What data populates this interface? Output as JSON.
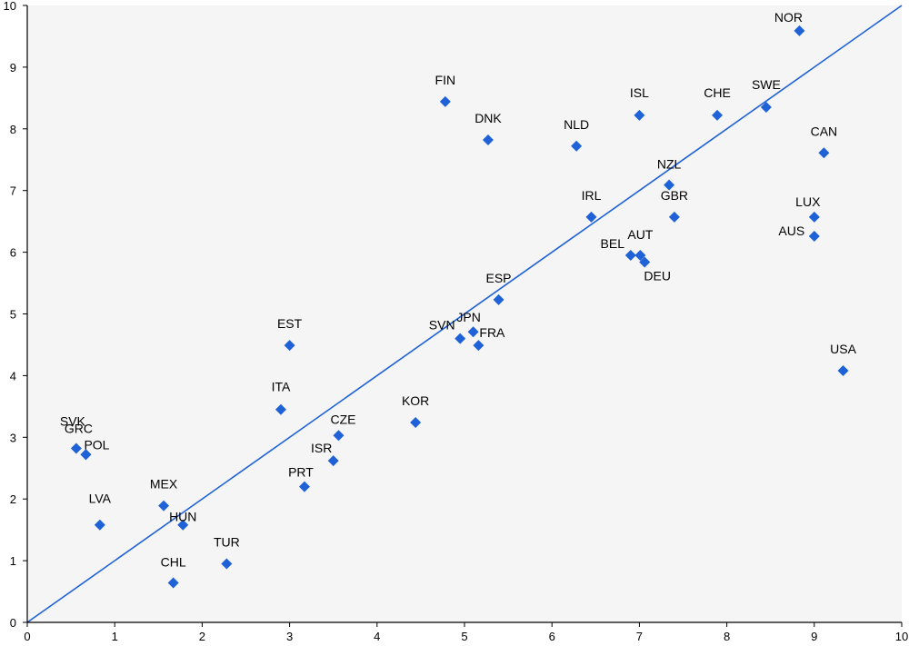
{
  "chart_data": {
    "type": "scatter",
    "title": "",
    "xlabel": "",
    "ylabel": "",
    "xlim": [
      0,
      10
    ],
    "ylim": [
      0,
      10
    ],
    "xticks": [
      "0",
      "1",
      "2",
      "3",
      "4",
      "5",
      "6",
      "7",
      "8",
      "9",
      "10"
    ],
    "yticks": [
      "0",
      "1",
      "2",
      "3",
      "4",
      "5",
      "6",
      "7",
      "8",
      "9",
      "10"
    ],
    "grid": false,
    "reference_line": {
      "from": [
        0,
        0
      ],
      "to": [
        10,
        10
      ]
    },
    "colors": {
      "points": "#1f62d8",
      "line": "#1f62d8",
      "plot_background": "#f5f5f5",
      "axis": "#000000"
    },
    "marker": "diamond",
    "points": [
      {
        "label": "NOR",
        "x": 8.83,
        "y": 9.59
      },
      {
        "label": "FIN",
        "x": 4.78,
        "y": 8.44
      },
      {
        "label": "ISL",
        "x": 7.0,
        "y": 8.22
      },
      {
        "label": "CHE",
        "x": 7.89,
        "y": 8.22
      },
      {
        "label": "SWE",
        "x": 8.45,
        "y": 8.35
      },
      {
        "label": "DNK",
        "x": 5.27,
        "y": 7.82
      },
      {
        "label": "NLD",
        "x": 6.28,
        "y": 7.72
      },
      {
        "label": "CAN",
        "x": 9.11,
        "y": 7.61
      },
      {
        "label": "NZL",
        "x": 7.34,
        "y": 7.09
      },
      {
        "label": "IRL",
        "x": 6.45,
        "y": 6.57
      },
      {
        "label": "GBR",
        "x": 7.4,
        "y": 6.57
      },
      {
        "label": "LUX",
        "x": 9.0,
        "y": 6.57
      },
      {
        "label": "AUS",
        "x": 9.0,
        "y": 6.26
      },
      {
        "label": "BEL",
        "x": 6.9,
        "y": 5.95
      },
      {
        "label": "AUT",
        "x": 7.01,
        "y": 5.95
      },
      {
        "label": "DEU",
        "x": 7.06,
        "y": 5.84
      },
      {
        "label": "ESP",
        "x": 5.39,
        "y": 5.23
      },
      {
        "label": "SVN",
        "x": 4.95,
        "y": 4.6
      },
      {
        "label": "JPN",
        "x": 5.1,
        "y": 4.71
      },
      {
        "label": "FRA",
        "x": 5.16,
        "y": 4.49
      },
      {
        "label": "EST",
        "x": 3.0,
        "y": 4.49
      },
      {
        "label": "USA",
        "x": 9.33,
        "y": 4.08
      },
      {
        "label": "ITA",
        "x": 2.9,
        "y": 3.45
      },
      {
        "label": "KOR",
        "x": 4.44,
        "y": 3.24
      },
      {
        "label": "CZE",
        "x": 3.56,
        "y": 3.03
      },
      {
        "label": "SVK",
        "x": 0.56,
        "y": 2.82
      },
      {
        "label": "GRC",
        "x": 0.67,
        "y": 2.72
      },
      {
        "label": "POL",
        "x": 0.67,
        "y": 2.72
      },
      {
        "label": "ISR",
        "x": 3.5,
        "y": 2.62
      },
      {
        "label": "PRT",
        "x": 3.17,
        "y": 2.2
      },
      {
        "label": "MEX",
        "x": 1.56,
        "y": 1.89
      },
      {
        "label": "HUN",
        "x": 1.78,
        "y": 1.58
      },
      {
        "label": "LVA",
        "x": 0.83,
        "y": 1.58
      },
      {
        "label": "TUR",
        "x": 2.28,
        "y": 0.95
      },
      {
        "label": "CHL",
        "x": 1.67,
        "y": 0.64
      }
    ]
  }
}
